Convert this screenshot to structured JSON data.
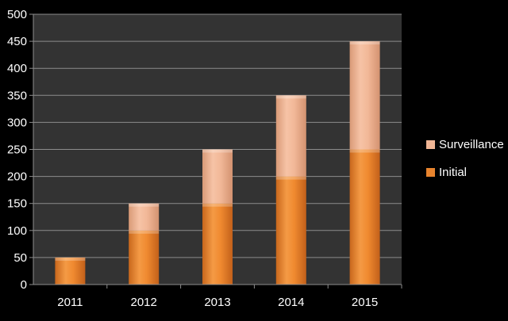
{
  "colors": {
    "background": "#000000",
    "plot_area": "#333333",
    "gridline": "#8c8c8c",
    "axis_text": "#ffffff",
    "initial": "#e8842e",
    "surveillance": "#f0b594"
  },
  "chart_data": {
    "type": "bar",
    "stacked": true,
    "categories": [
      "2011",
      "2012",
      "2013",
      "2014",
      "2015"
    ],
    "series": [
      {
        "name": "Initial",
        "values": [
          50,
          100,
          150,
          200,
          250
        ]
      },
      {
        "name": "Surveillance",
        "values": [
          0,
          50,
          100,
          150,
          200
        ]
      }
    ],
    "title": "",
    "xlabel": "",
    "ylabel": "",
    "ylim": [
      0,
      500
    ],
    "yticks": [
      "0",
      "50",
      "100",
      "150",
      "200",
      "250",
      "300",
      "350",
      "400",
      "450",
      "500"
    ],
    "grid": true,
    "legend_placement": "right",
    "legend": [
      "Surveillance",
      "Initial"
    ]
  }
}
